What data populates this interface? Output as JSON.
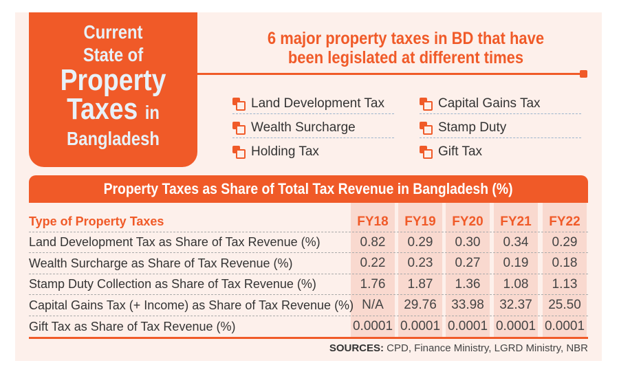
{
  "title": {
    "line1": "Current",
    "line2": "State of",
    "line3": "Property",
    "line4": "Taxes",
    "line4_small": "in",
    "line5": "Bangladesh"
  },
  "headline": {
    "line1": "6 major property taxes in BD that have",
    "line2": "been legislated at different times"
  },
  "taxes": [
    "Land Development Tax",
    "Wealth Surcharge",
    "Holding Tax",
    "Capital Gains Tax",
    "Stamp Duty",
    "Gift Tax"
  ],
  "table": {
    "title": "Property Taxes as Share of Total Tax Revenue in Bangladesh (%)",
    "header": "Type of Property Taxes",
    "years": [
      "FY18",
      "FY19",
      "FY20",
      "FY21",
      "FY22"
    ],
    "rows": [
      {
        "label": "Land Development Tax as Share of Tax Revenue (%)",
        "values": [
          "0.82",
          "0.29",
          "0.30",
          "0.34",
          "0.29"
        ]
      },
      {
        "label": "Wealth Surcharge as Share of Tax Revenue (%)",
        "values": [
          "0.22",
          "0.23",
          "0.27",
          "0.19",
          "0.18"
        ]
      },
      {
        "label": "Stamp Duty Collection as Share of Tax Revenue (%)",
        "values": [
          "1.76",
          "1.87",
          "1.36",
          "1.08",
          "1.13"
        ]
      },
      {
        "label": "Capital Gains Tax (+ Income) as Share of Tax Revenue (%)",
        "values": [
          "N/A",
          "29.76",
          "33.98",
          "32.37",
          "25.50"
        ]
      },
      {
        "label": "Gift Tax as Share of Tax Revenue (%)",
        "values": [
          "0.0001",
          "0.0001",
          "0.0001",
          "0.0001",
          "0.0001"
        ]
      }
    ]
  },
  "sources": {
    "label": "SOURCES:",
    "text": "CPD, Finance Ministry, LGRD Ministry, NBR"
  },
  "colors": {
    "accent": "#f05a28",
    "background": "#fdf0eb",
    "column_highlight": "#f9d9cf"
  }
}
